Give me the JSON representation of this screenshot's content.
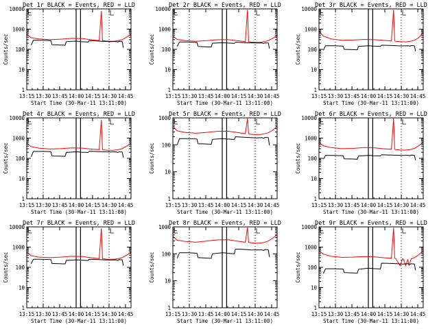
{
  "figure": {
    "background": "#ffffff",
    "axis_color": "#000000",
    "events_color": "#000000",
    "lld_color": "#ff0000",
    "xlabel": "Start Time (30-Mar-11 13:11:00)",
    "ylabel": "Counts/sec",
    "x_tick_labels": [
      "13:15",
      "13:30",
      "13:45",
      "14:00",
      "14:15",
      "14:30",
      "14:45"
    ],
    "y_tick_labels": [
      "1",
      "10",
      "100",
      "1000",
      "10000"
    ]
  },
  "chart_data": [
    {
      "type": "line",
      "title": "Det 1r BLACK = Events, RED = LLD",
      "xlabel": "Start Time (30-Mar-11 13:11:00)",
      "ylabel": "Counts/sec",
      "x_unit": "minutes after 13:11:00",
      "xlim": [
        4,
        99
      ],
      "ylim": [
        1,
        10000
      ],
      "y_scale": "log",
      "series": [
        {
          "name": "LLD",
          "color": "#ff0000",
          "x": [
            4,
            8,
            15,
            25,
            35,
            45,
            55,
            62,
            70,
            72,
            73,
            74,
            78,
            83,
            87,
            91,
            95,
            99
          ],
          "y": [
            550,
            380,
            330,
            300,
            320,
            350,
            340,
            300,
            270,
            8000,
            270,
            265,
            255,
            250,
            265,
            300,
            400,
            560
          ]
        },
        {
          "name": "Events",
          "color": "#000000",
          "x": [
            8,
            10,
            18,
            26,
            27,
            33,
            39,
            40,
            49,
            52,
            53,
            58,
            60,
            61,
            65,
            70,
            75,
            80,
            85,
            87,
            88,
            91,
            92
          ],
          "y": [
            160,
            280,
            280,
            270,
            170,
            165,
            160,
            240,
            255,
            245,
            240,
            235,
            230,
            270,
            265,
            255,
            248,
            242,
            245,
            230,
            250,
            240,
            120
          ]
        }
      ],
      "vertical_lines": {
        "dotted_at": [
          19,
          49,
          79
        ],
        "gap_at": [
          49,
          53
        ]
      }
    },
    {
      "type": "line",
      "title": "Det 2r BLACK = Events, RED = LLD",
      "xlabel": "Start Time (30-Mar-11 13:11:00)",
      "ylabel": "Counts/sec",
      "x_unit": "minutes after 13:11:00",
      "xlim": [
        4,
        99
      ],
      "ylim": [
        1,
        10000
      ],
      "y_scale": "log",
      "series": [
        {
          "name": "LLD",
          "color": "#ff0000",
          "x": [
            4,
            8,
            15,
            25,
            35,
            45,
            55,
            62,
            70,
            72,
            73,
            74,
            78,
            83,
            87,
            91,
            95,
            99
          ],
          "y": [
            450,
            310,
            270,
            250,
            270,
            300,
            300,
            270,
            240,
            9000,
            240,
            235,
            225,
            220,
            240,
            270,
            350,
            480
          ]
        },
        {
          "name": "Events",
          "color": "#000000",
          "x": [
            8,
            10,
            18,
            26,
            27,
            33,
            39,
            40,
            49,
            52,
            53,
            58,
            60,
            61,
            65,
            70,
            75,
            80,
            85,
            87,
            88,
            91,
            92
          ],
          "y": [
            140,
            230,
            230,
            220,
            140,
            135,
            130,
            200,
            215,
            210,
            205,
            200,
            195,
            225,
            220,
            215,
            210,
            205,
            208,
            195,
            210,
            205,
            110
          ]
        }
      ],
      "vertical_lines": {
        "dotted_at": [
          19,
          49,
          79
        ],
        "gap_at": [
          49,
          53
        ]
      }
    },
    {
      "type": "line",
      "title": "Det 3r BLACK = Events, RED = LLD",
      "xlabel": "Start Time (30-Mar-11 13:11:00)",
      "ylabel": "Counts/sec",
      "x_unit": "minutes after 13:11:00",
      "xlim": [
        4,
        99
      ],
      "ylim": [
        1,
        10000
      ],
      "y_scale": "log",
      "series": [
        {
          "name": "LLD",
          "color": "#ff0000",
          "x": [
            4,
            8,
            15,
            25,
            35,
            45,
            55,
            62,
            70,
            72,
            73,
            74,
            78,
            83,
            87,
            91,
            95,
            99
          ],
          "y": [
            800,
            450,
            330,
            280,
            290,
            310,
            300,
            280,
            260,
            9000,
            260,
            250,
            240,
            235,
            250,
            280,
            380,
            700
          ]
        },
        {
          "name": "Events",
          "color": "#000000",
          "x": [
            8,
            10,
            18,
            26,
            27,
            33,
            39,
            40,
            49,
            52,
            53,
            58,
            60,
            61,
            65,
            70,
            75,
            80,
            85,
            87,
            88,
            91,
            92
          ],
          "y": [
            90,
            150,
            150,
            145,
            100,
            98,
            95,
            140,
            150,
            148,
            145,
            142,
            140,
            160,
            158,
            155,
            150,
            148,
            150,
            145,
            155,
            150,
            80
          ]
        }
      ],
      "vertical_lines": {
        "dotted_at": [
          19,
          49,
          79
        ],
        "gap_at": [
          49,
          53
        ]
      }
    },
    {
      "type": "line",
      "title": "Det 4r BLACK = Events, RED = LLD",
      "xlabel": "Start Time (30-Mar-11 13:11:00)",
      "ylabel": "Counts/sec",
      "x_unit": "minutes after 13:11:00",
      "xlim": [
        4,
        99
      ],
      "ylim": [
        1,
        10000
      ],
      "y_scale": "log",
      "series": [
        {
          "name": "LLD",
          "color": "#ff0000",
          "x": [
            4,
            8,
            15,
            25,
            35,
            45,
            55,
            62,
            70,
            72,
            73,
            74,
            78,
            83,
            87,
            91,
            95,
            99
          ],
          "y": [
            550,
            380,
            320,
            290,
            300,
            330,
            320,
            290,
            270,
            8000,
            270,
            260,
            250,
            250,
            265,
            300,
            400,
            550
          ]
        },
        {
          "name": "Events",
          "color": "#000000",
          "x": [
            8,
            10,
            18,
            26,
            27,
            33,
            39,
            40,
            49,
            52,
            53,
            58,
            60,
            61,
            65,
            70,
            75,
            80,
            85,
            87,
            88,
            91,
            92
          ],
          "y": [
            120,
            220,
            220,
            215,
            130,
            128,
            125,
            195,
            210,
            205,
            200,
            198,
            195,
            225,
            220,
            215,
            210,
            205,
            210,
            195,
            210,
            205,
            110
          ]
        }
      ],
      "vertical_lines": {
        "dotted_at": [
          19,
          49,
          79
        ],
        "gap_at": [
          49,
          53
        ]
      }
    },
    {
      "type": "line",
      "title": "Det 5r BLACK = Events, RED = LLD",
      "xlabel": "Start Time (30-Mar-11 13:11:00)",
      "ylabel": "Counts/sec",
      "x_unit": "minutes after 13:11:00",
      "xlim": [
        4,
        99
      ],
      "ylim": [
        1,
        1000
      ],
      "y_scale": "log",
      "series": [
        {
          "name": "LLD",
          "color": "#ff0000",
          "x": [
            4,
            8,
            15,
            25,
            35,
            45,
            55,
            62,
            70,
            72,
            73,
            74,
            78,
            83,
            87,
            91,
            95,
            99
          ],
          "y": [
            480,
            330,
            290,
            270,
            290,
            320,
            320,
            290,
            260,
            950,
            260,
            250,
            240,
            240,
            255,
            280,
            350,
            480
          ]
        },
        {
          "name": "Events",
          "color": "#000000",
          "x": [
            8,
            10,
            18,
            26,
            27,
            33,
            39,
            40,
            49,
            52,
            53,
            58,
            60,
            61,
            65,
            70,
            75,
            80,
            85,
            87,
            88,
            91,
            92
          ],
          "y": [
            100,
            170,
            170,
            165,
            110,
            108,
            105,
            160,
            170,
            168,
            165,
            160,
            158,
            200,
            195,
            190,
            185,
            180,
            185,
            175,
            190,
            185,
            95
          ]
        }
      ],
      "vertical_lines": {
        "dotted_at": [
          19,
          49,
          79
        ],
        "gap_at": [
          49,
          53
        ]
      }
    },
    {
      "type": "line",
      "title": "Det 6r BLACK = Events, RED = LLD",
      "xlabel": "Start Time (30-Mar-11 13:11:00)",
      "ylabel": "Counts/sec",
      "x_unit": "minutes after 13:11:00",
      "xlim": [
        4,
        99
      ],
      "ylim": [
        1,
        10000
      ],
      "y_scale": "log",
      "series": [
        {
          "name": "LLD",
          "color": "#ff0000",
          "x": [
            4,
            8,
            15,
            25,
            35,
            45,
            55,
            62,
            70,
            72,
            73,
            74,
            78,
            83,
            87,
            91,
            95,
            99
          ],
          "y": [
            600,
            420,
            340,
            300,
            310,
            340,
            330,
            300,
            280,
            9500,
            280,
            270,
            260,
            255,
            270,
            310,
            420,
            620
          ]
        },
        {
          "name": "Events",
          "color": "#000000",
          "x": [
            8,
            10,
            18,
            26,
            27,
            33,
            39,
            40,
            49,
            52,
            53,
            58,
            60,
            61,
            65,
            70,
            75,
            80,
            85,
            87,
            88,
            91,
            92
          ],
          "y": [
            90,
            140,
            140,
            135,
            95,
            93,
            90,
            130,
            140,
            138,
            135,
            132,
            130,
            150,
            148,
            145,
            142,
            140,
            142,
            135,
            145,
            140,
            80
          ]
        }
      ],
      "vertical_lines": {
        "dotted_at": [
          19,
          49,
          79
        ],
        "gap_at": [
          49,
          53
        ]
      }
    },
    {
      "type": "line",
      "title": "Det 7r BLACK = Events, RED = LLD",
      "xlabel": "Start Time (30-Mar-11 13:11:00)",
      "ylabel": "Counts/sec",
      "x_unit": "minutes after 13:11:00",
      "xlim": [
        4,
        99
      ],
      "ylim": [
        1,
        10000
      ],
      "y_scale": "log",
      "series": [
        {
          "name": "LLD",
          "color": "#ff0000",
          "x": [
            4,
            8,
            15,
            25,
            35,
            45,
            55,
            62,
            70,
            72,
            73,
            74,
            78,
            83,
            87,
            91,
            95,
            99
          ],
          "y": [
            550,
            380,
            320,
            300,
            320,
            350,
            340,
            300,
            270,
            8500,
            270,
            260,
            250,
            250,
            265,
            300,
            400,
            560
          ]
        },
        {
          "name": "Events",
          "color": "#000000",
          "x": [
            8,
            10,
            18,
            26,
            27,
            33,
            39,
            40,
            49,
            52,
            53,
            58,
            60,
            61,
            65,
            70,
            75,
            80,
            85,
            87,
            88,
            91,
            92
          ],
          "y": [
            150,
            250,
            250,
            240,
            155,
            150,
            148,
            220,
            235,
            230,
            225,
            220,
            218,
            250,
            245,
            240,
            235,
            230,
            235,
            220,
            240,
            235,
            120
          ]
        }
      ],
      "vertical_lines": {
        "dotted_at": [
          19,
          49,
          79
        ],
        "gap_at": [
          49,
          53
        ]
      }
    },
    {
      "type": "line",
      "title": "Det 8r BLACK = Events, RED = LLD",
      "xlabel": "Start Time (30-Mar-11 13:11:00)",
      "ylabel": "Counts/sec",
      "x_unit": "minutes after 13:11:00",
      "xlim": [
        4,
        99
      ],
      "ylim": [
        1,
        1000
      ],
      "y_scale": "log",
      "series": [
        {
          "name": "LLD",
          "color": "#ff0000",
          "x": [
            4,
            8,
            15,
            25,
            35,
            45,
            55,
            62,
            70,
            72,
            73,
            74,
            78,
            83,
            87,
            91,
            95,
            99
          ],
          "y": [
            450,
            320,
            290,
            270,
            300,
            330,
            330,
            300,
            270,
            950,
            270,
            260,
            250,
            250,
            265,
            300,
            380,
            520
          ]
        },
        {
          "name": "Events",
          "color": "#000000",
          "x": [
            8,
            10,
            18,
            26,
            27,
            33,
            39,
            40,
            49,
            52,
            53,
            58,
            60,
            61,
            65,
            70,
            75,
            80,
            85,
            87,
            88,
            91,
            92
          ],
          "y": [
            70,
            110,
            110,
            105,
            72,
            70,
            68,
            100,
            110,
            108,
            105,
            102,
            100,
            150,
            148,
            145,
            140,
            138,
            140,
            135,
            145,
            140,
            75
          ]
        }
      ],
      "vertical_lines": {
        "dotted_at": [
          19,
          49,
          79
        ],
        "gap_at": [
          49,
          53
        ]
      }
    },
    {
      "type": "line",
      "title": "Det 9r BLACK = Events, RED = LLD",
      "xlabel": "Start Time (30-Mar-11 13:11:00)",
      "ylabel": "Counts/sec",
      "x_unit": "minutes after 13:11:00",
      "xlim": [
        4,
        99
      ],
      "ylim": [
        1,
        10000
      ],
      "y_scale": "log",
      "series": [
        {
          "name": "LLD",
          "color": "#ff0000",
          "x": [
            4,
            8,
            15,
            25,
            35,
            45,
            55,
            62,
            70,
            72,
            73,
            74,
            78,
            80,
            81,
            83,
            85,
            86,
            88,
            91,
            95,
            99
          ],
          "y": [
            650,
            450,
            350,
            310,
            320,
            340,
            330,
            300,
            280,
            9000,
            280,
            270,
            120,
            260,
            255,
            120,
            250,
            120,
            260,
            300,
            420,
            650
          ]
        },
        {
          "name": "Events",
          "color": "#000000",
          "x": [
            8,
            10,
            18,
            26,
            27,
            33,
            39,
            40,
            49,
            52,
            53,
            58,
            60,
            61,
            65,
            70,
            75,
            80,
            85,
            87,
            88,
            91,
            92
          ],
          "y": [
            50,
            85,
            85,
            82,
            55,
            53,
            52,
            80,
            90,
            88,
            86,
            84,
            82,
            160,
            158,
            155,
            150,
            145,
            150,
            140,
            150,
            145,
            70
          ]
        }
      ],
      "vertical_lines": {
        "dotted_at": [
          19,
          49,
          79
        ],
        "gap_at": [
          49,
          53
        ]
      }
    }
  ]
}
